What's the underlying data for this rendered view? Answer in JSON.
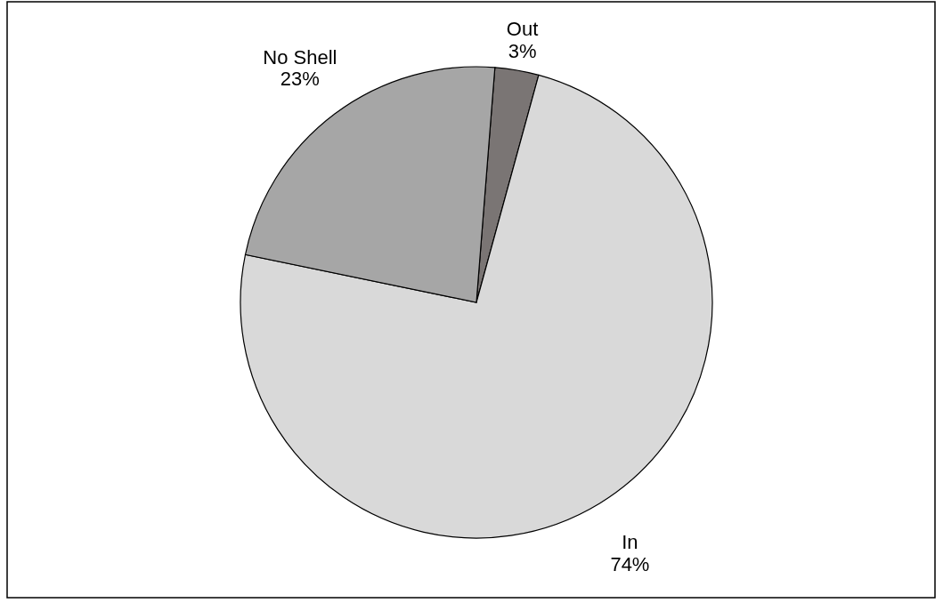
{
  "chart_data": {
    "type": "pie",
    "categories": [
      "Out",
      "In",
      "No Shell"
    ],
    "values": [
      3,
      74,
      23
    ],
    "value_labels": [
      "3%",
      "74%",
      "23%"
    ],
    "colors": [
      "#7a7574",
      "#d9d9d9",
      "#a6a6a6"
    ]
  }
}
